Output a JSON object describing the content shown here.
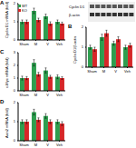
{
  "chart_data": [
    {
      "type": "bar",
      "title": "A",
      "y_label": "Cyclin D1 mRNA (fold)",
      "categories": [
        "Sham",
        "M",
        "V",
        "Veh"
      ],
      "ylim": [
        0,
        2
      ],
      "yticks": [
        0,
        1,
        2
      ],
      "legend": "upper left",
      "series": [
        {
          "name": "WT",
          "color": "#2e9e4f",
          "values": [
            1.0,
            1.6,
            1.3,
            1.0
          ],
          "errors": [
            0.1,
            0.15,
            0.12,
            0.1
          ]
        },
        {
          "name": "KO",
          "color": "#d62728",
          "values": [
            1.0,
            1.1,
            0.9,
            0.9
          ],
          "errors": [
            0.1,
            0.1,
            0.1,
            0.08
          ]
        }
      ]
    },
    {
      "type": "bar",
      "title": "B",
      "y_label": "Cyclin D1/β-actin",
      "annotations": [
        "Cyclin D1",
        "β-actin"
      ],
      "categories": [
        "Sham",
        "M",
        "V",
        "Veh"
      ],
      "ylim": [
        0,
        2
      ],
      "yticks": [
        0,
        1,
        2
      ],
      "series": [
        {
          "name": "WT",
          "color": "#2e9e4f",
          "values": [
            1.0,
            1.5,
            1.2,
            1.0
          ],
          "errors": [
            0.1,
            0.15,
            0.1,
            0.1
          ]
        },
        {
          "name": "KO",
          "color": "#d62728",
          "values": [
            0.9,
            1.7,
            1.4,
            1.1
          ],
          "errors": [
            0.1,
            0.15,
            0.12,
            0.1
          ]
        }
      ]
    },
    {
      "type": "bar",
      "title": "C",
      "y_label": "c-Myc mRNA (fold)",
      "categories": [
        "Sham",
        "M",
        "V",
        "Veh"
      ],
      "ylim": [
        0,
        3
      ],
      "yticks": [
        0,
        1,
        2,
        3
      ],
      "series": [
        {
          "name": "WT",
          "color": "#2e9e4f",
          "values": [
            1.0,
            2.2,
            1.6,
            1.1
          ],
          "errors": [
            0.15,
            0.25,
            0.2,
            0.15
          ]
        },
        {
          "name": "KO",
          "color": "#d62728",
          "values": [
            1.0,
            1.3,
            1.1,
            1.0
          ],
          "errors": [
            0.12,
            0.15,
            0.12,
            0.1
          ]
        }
      ]
    },
    {
      "type": "bar",
      "title": "D",
      "y_label": "Axin2 mRNA (fold)",
      "categories": [
        "Sham",
        "M",
        "V",
        "Veh"
      ],
      "ylim": [
        0,
        2
      ],
      "yticks": [
        0,
        1,
        2
      ],
      "series": [
        {
          "name": "WT",
          "color": "#2e9e4f",
          "values": [
            1.0,
            1.5,
            1.3,
            1.0
          ],
          "errors": [
            0.1,
            0.15,
            0.12,
            0.1
          ]
        },
        {
          "name": "KO",
          "color": "#d62728",
          "values": [
            1.0,
            1.1,
            1.0,
            0.9
          ],
          "errors": [
            0.1,
            0.1,
            0.1,
            0.1
          ]
        }
      ]
    }
  ]
}
